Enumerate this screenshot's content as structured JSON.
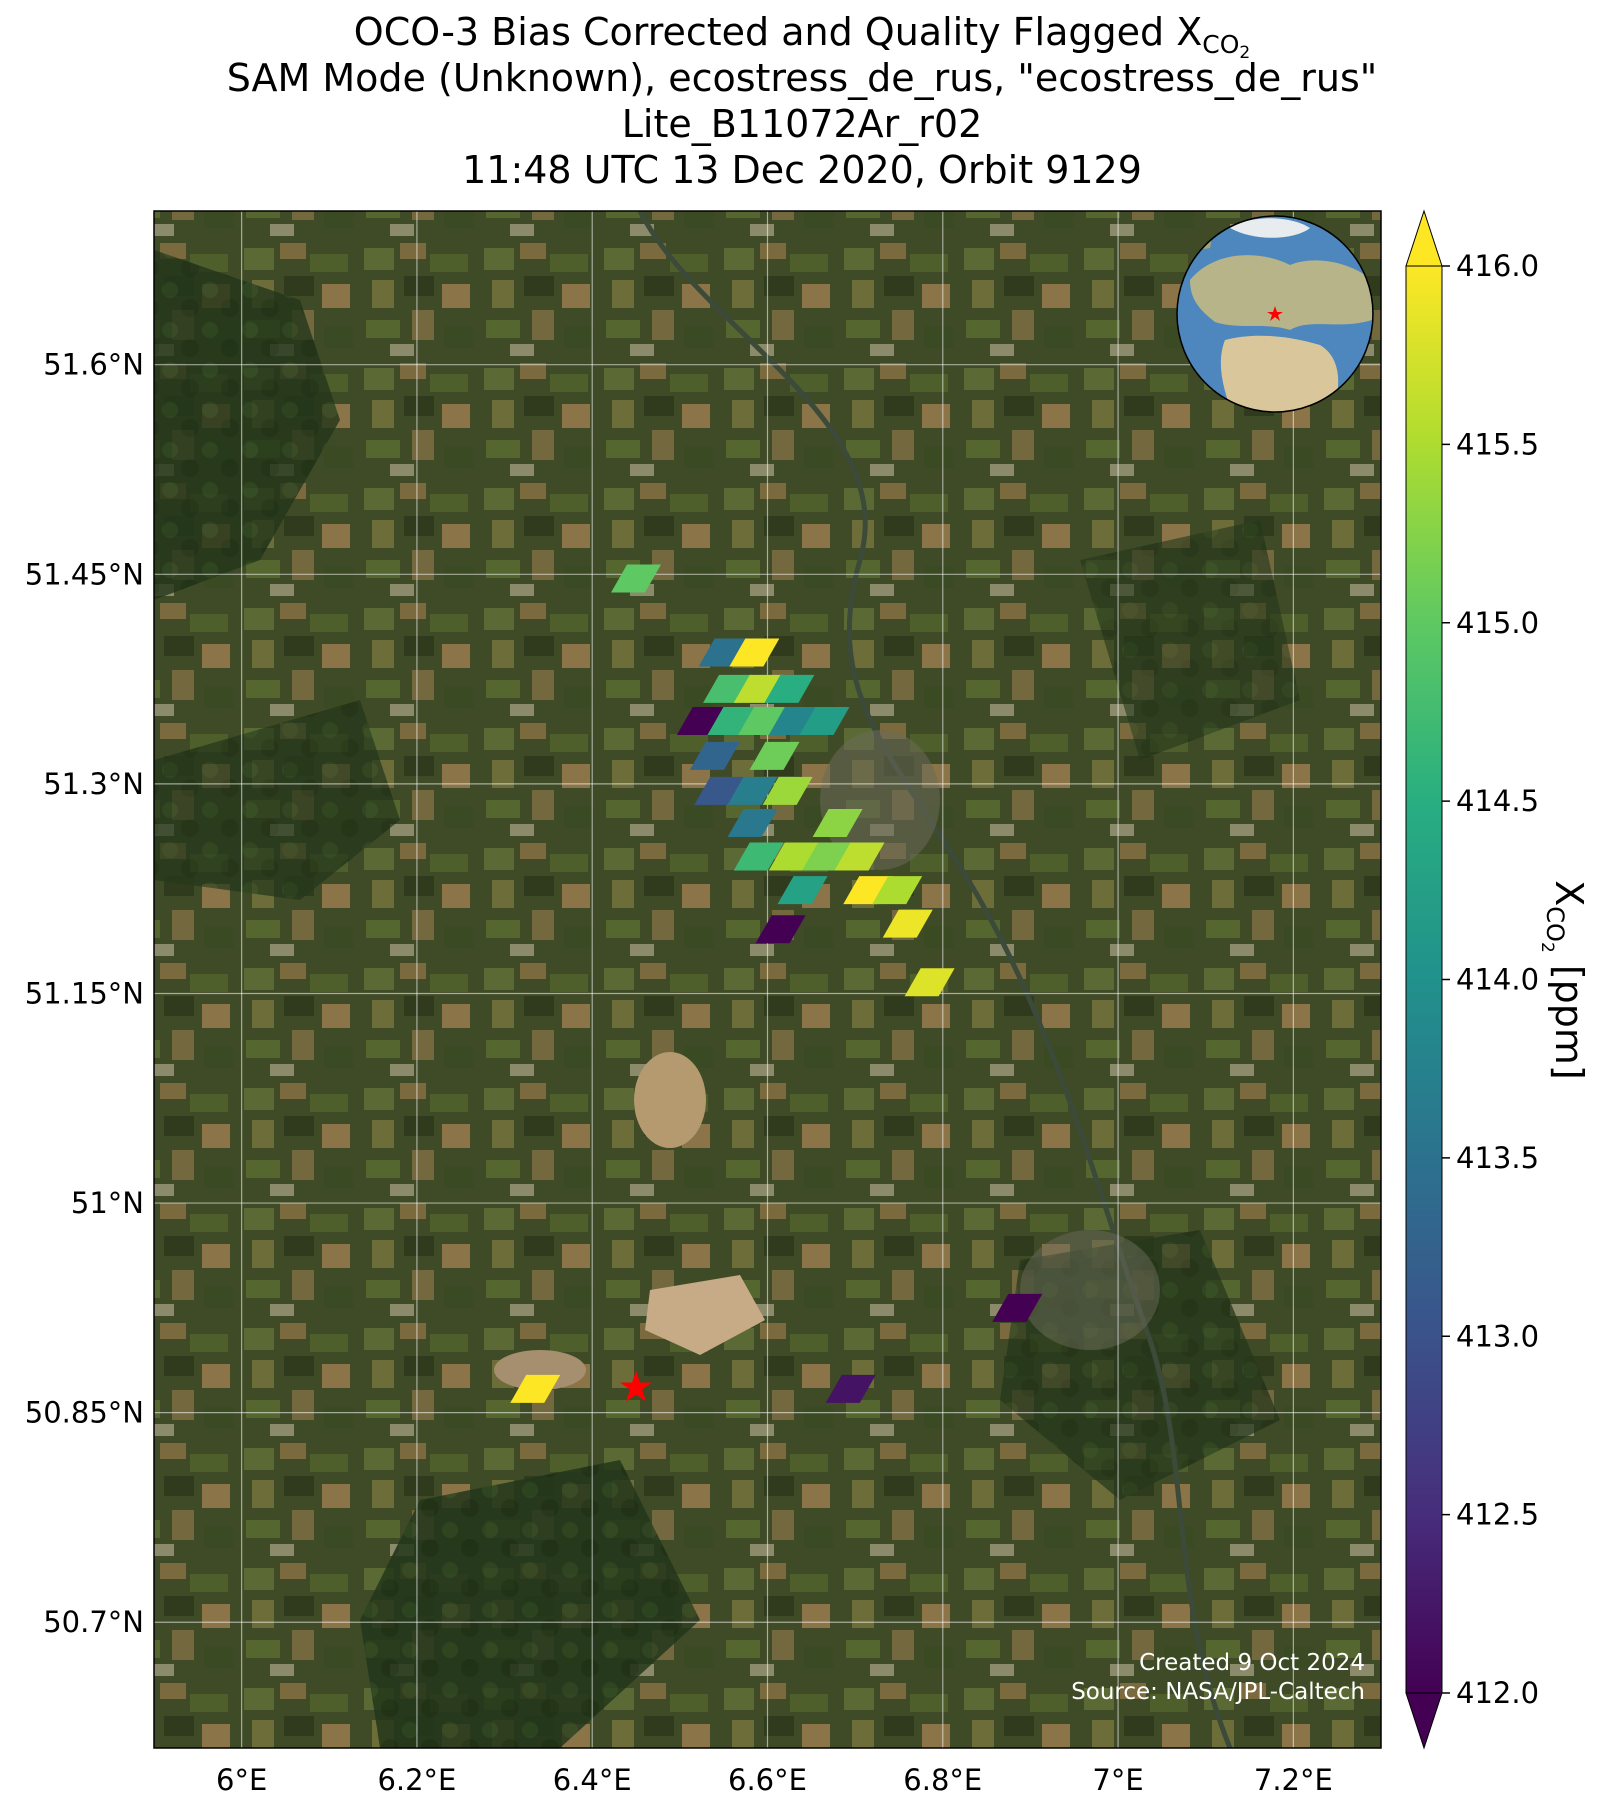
{
  "title": {
    "line1_prefix": "OCO-3 Bias Corrected and Quality Flagged X",
    "line1_sub": "CO",
    "line1_subsub": "2",
    "line2": "SAM Mode (Unknown), ecostress_de_rus, \"ecostress_de_rus\"",
    "line3": "Lite_B11072Ar_r02",
    "line4": "11:48 UTC 13 Dec 2020, Orbit 9129"
  },
  "map": {
    "lon_range": [
      5.9,
      7.3
    ],
    "lat_range": [
      50.61,
      51.71
    ],
    "lon_ticks": [
      {
        "value": 6.0,
        "label": "6°E"
      },
      {
        "value": 6.2,
        "label": "6.2°E"
      },
      {
        "value": 6.4,
        "label": "6.4°E"
      },
      {
        "value": 6.6,
        "label": "6.6°E"
      },
      {
        "value": 6.8,
        "label": "6.8°E"
      },
      {
        "value": 7.0,
        "label": "7°E"
      },
      {
        "value": 7.2,
        "label": "7.2°E"
      }
    ],
    "lat_ticks": [
      {
        "value": 51.6,
        "label": "51.6°N"
      },
      {
        "value": 51.45,
        "label": "51.45°N"
      },
      {
        "value": 51.3,
        "label": "51.3°N"
      },
      {
        "value": 51.15,
        "label": "51.15°N"
      },
      {
        "value": 51.0,
        "label": "51°N"
      },
      {
        "value": 50.85,
        "label": "50.85°N"
      },
      {
        "value": 50.7,
        "label": "50.7°N"
      }
    ],
    "target_site": {
      "lon": 6.45,
      "lat": 50.868,
      "color": "#ff0000"
    },
    "background": "satellite imagery"
  },
  "colorbar": {
    "label_prefix": "X",
    "label_sub": "CO",
    "label_subsub": "2",
    "label_suffix": " [ppm]",
    "min": 412.0,
    "max": 416.0,
    "extend": "both",
    "colormap": "viridis",
    "ticks": [
      {
        "value": 412.0,
        "label": "412.0"
      },
      {
        "value": 412.5,
        "label": "412.5"
      },
      {
        "value": 413.0,
        "label": "413.0"
      },
      {
        "value": 413.5,
        "label": "413.5"
      },
      {
        "value": 414.0,
        "label": "414.0"
      },
      {
        "value": 414.5,
        "label": "414.5"
      },
      {
        "value": 415.0,
        "label": "415.0"
      },
      {
        "value": 415.5,
        "label": "415.5"
      },
      {
        "value": 416.0,
        "label": "416.0"
      }
    ]
  },
  "chart_data": {
    "type": "scatter",
    "value_units": "ppm",
    "soundings": [
      {
        "lon": 6.45,
        "lat": 51.447,
        "xco2": 415.0
      },
      {
        "lon": 6.55,
        "lat": 51.394,
        "xco2": 413.5
      },
      {
        "lon": 6.585,
        "lat": 51.394,
        "xco2": 416.0
      },
      {
        "lon": 6.555,
        "lat": 51.368,
        "xco2": 414.8
      },
      {
        "lon": 6.59,
        "lat": 51.368,
        "xco2": 415.6
      },
      {
        "lon": 6.625,
        "lat": 51.368,
        "xco2": 414.5
      },
      {
        "lon": 6.525,
        "lat": 51.345,
        "xco2": 412.0
      },
      {
        "lon": 6.56,
        "lat": 51.345,
        "xco2": 414.6
      },
      {
        "lon": 6.595,
        "lat": 51.345,
        "xco2": 415.0
      },
      {
        "lon": 6.63,
        "lat": 51.345,
        "xco2": 413.8
      },
      {
        "lon": 6.665,
        "lat": 51.345,
        "xco2": 414.2
      },
      {
        "lon": 6.54,
        "lat": 51.32,
        "xco2": 413.3
      },
      {
        "lon": 6.608,
        "lat": 51.32,
        "xco2": 415.1
      },
      {
        "lon": 6.545,
        "lat": 51.295,
        "xco2": 413.1
      },
      {
        "lon": 6.583,
        "lat": 51.295,
        "xco2": 413.7
      },
      {
        "lon": 6.623,
        "lat": 51.295,
        "xco2": 415.4
      },
      {
        "lon": 6.583,
        "lat": 51.272,
        "xco2": 413.6
      },
      {
        "lon": 6.68,
        "lat": 51.272,
        "xco2": 415.3
      },
      {
        "lon": 6.59,
        "lat": 51.248,
        "xco2": 414.7
      },
      {
        "lon": 6.63,
        "lat": 51.248,
        "xco2": 415.5
      },
      {
        "lon": 6.668,
        "lat": 51.248,
        "xco2": 415.2
      },
      {
        "lon": 6.705,
        "lat": 51.248,
        "xco2": 415.6
      },
      {
        "lon": 6.64,
        "lat": 51.224,
        "xco2": 414.3
      },
      {
        "lon": 6.715,
        "lat": 51.224,
        "xco2": 416.0
      },
      {
        "lon": 6.748,
        "lat": 51.224,
        "xco2": 415.5
      },
      {
        "lon": 6.76,
        "lat": 51.2,
        "xco2": 415.9
      },
      {
        "lon": 6.615,
        "lat": 51.196,
        "xco2": 412.0
      },
      {
        "lon": 6.785,
        "lat": 51.158,
        "xco2": 415.8
      },
      {
        "lon": 6.885,
        "lat": 50.925,
        "xco2": 412.0
      },
      {
        "lon": 6.695,
        "lat": 50.867,
        "xco2": 412.2
      },
      {
        "lon": 6.335,
        "lat": 50.867,
        "xco2": 416.1
      }
    ]
  },
  "credit": {
    "line1": "Created 9 Oct 2024",
    "line2": "Source: NASA/JPL-Caltech"
  }
}
